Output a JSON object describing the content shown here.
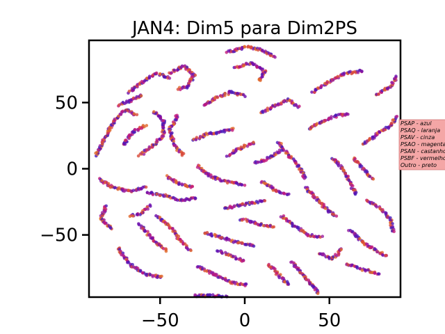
{
  "chart_data": {
    "type": "scatter",
    "title": "JAN4: Dim5 para Dim2PS",
    "xlabel": "",
    "ylabel": "",
    "xlim": [
      -92,
      92
    ],
    "ylim": [
      -97,
      97
    ],
    "xticks": [
      -50,
      0,
      50
    ],
    "yticks": [
      -50,
      0,
      50
    ],
    "xtick_labels": [
      "−50",
      "0",
      "50"
    ],
    "ytick_labels": [
      "−50",
      "0",
      "50"
    ],
    "grid": false,
    "legend_placement": "right, outside plot",
    "legend": [
      "PSAP - azul",
      "PSAQ - laranja",
      "PSAV - cinza",
      "PSAO - magenta",
      "PSAN - castanho",
      "PSBF - vermelho",
      "Outro - preto"
    ],
    "legend_bg": "#f4a6a6",
    "point_colors": [
      "#6a0dad",
      "#c0187a",
      "#d84a3a",
      "#4a1ab8",
      "#e0662a",
      "#9b1fa0"
    ],
    "clusters": [
      [
        [
          -88,
          10
        ],
        [
          -82,
          25
        ],
        [
          -76,
          38
        ],
        [
          -70,
          45
        ],
        [
          -64,
          40
        ]
      ],
      [
        [
          -86,
          -8
        ],
        [
          -78,
          -14
        ],
        [
          -68,
          -17
        ],
        [
          -58,
          -14
        ]
      ],
      [
        [
          -82,
          -28
        ],
        [
          -85,
          -38
        ],
        [
          -78,
          -46
        ]
      ],
      [
        [
          -72,
          18
        ],
        [
          -66,
          28
        ],
        [
          -58,
          33
        ]
      ],
      [
        [
          -62,
          10
        ],
        [
          -54,
          18
        ],
        [
          -48,
          25
        ],
        [
          -48,
          36
        ],
        [
          -54,
          44
        ]
      ],
      [
        [
          -68,
          58
        ],
        [
          -60,
          66
        ],
        [
          -52,
          72
        ],
        [
          -44,
          68
        ]
      ],
      [
        [
          -58,
          -18
        ],
        [
          -48,
          -20
        ],
        [
          -38,
          -24
        ],
        [
          -28,
          -22
        ]
      ],
      [
        [
          -75,
          -60
        ],
        [
          -68,
          -72
        ],
        [
          -58,
          -80
        ],
        [
          -48,
          -82
        ]
      ],
      [
        [
          -62,
          -42
        ],
        [
          -54,
          -54
        ],
        [
          -46,
          -62
        ]
      ],
      [
        [
          -52,
          -36
        ],
        [
          -44,
          -44
        ],
        [
          -38,
          -54
        ],
        [
          -32,
          -62
        ]
      ],
      [
        [
          -44,
          72
        ],
        [
          -36,
          78
        ],
        [
          -30,
          70
        ],
        [
          -34,
          62
        ],
        [
          -40,
          60
        ]
      ],
      [
        [
          -40,
          40
        ],
        [
          -44,
          30
        ],
        [
          -42,
          18
        ],
        [
          -36,
          10
        ]
      ],
      [
        [
          -28,
          2
        ],
        [
          -20,
          -6
        ],
        [
          -10,
          -10
        ],
        [
          0,
          -12
        ]
      ],
      [
        [
          -30,
          22
        ],
        [
          -22,
          26
        ],
        [
          -14,
          28
        ],
        [
          -6,
          30
        ]
      ],
      [
        [
          -24,
          48
        ],
        [
          -16,
          54
        ],
        [
          -8,
          58
        ],
        [
          0,
          55
        ]
      ],
      [
        [
          -24,
          -48
        ],
        [
          -14,
          -52
        ],
        [
          -4,
          -56
        ],
        [
          6,
          -58
        ]
      ],
      [
        [
          -12,
          -30
        ],
        [
          -4,
          -28
        ],
        [
          4,
          -26
        ],
        [
          12,
          -24
        ]
      ],
      [
        [
          -28,
          -74
        ],
        [
          -18,
          -80
        ],
        [
          -8,
          -86
        ],
        [
          2,
          -88
        ]
      ],
      [
        [
          -30,
          -96
        ],
        [
          -18,
          -96
        ],
        [
          -6,
          -98
        ],
        [
          6,
          -100
        ]
      ],
      [
        [
          -10,
          88
        ],
        [
          0,
          92
        ],
        [
          10,
          90
        ],
        [
          18,
          84
        ]
      ],
      [
        [
          -6,
          76
        ],
        [
          4,
          80
        ],
        [
          12,
          74
        ],
        [
          8,
          66
        ]
      ],
      [
        [
          10,
          42
        ],
        [
          18,
          48
        ],
        [
          26,
          52
        ],
        [
          32,
          46
        ]
      ],
      [
        [
          20,
          20
        ],
        [
          26,
          10
        ],
        [
          32,
          2
        ],
        [
          36,
          -8
        ]
      ],
      [
        [
          6,
          4
        ],
        [
          14,
          8
        ],
        [
          22,
          14
        ]
      ],
      [
        [
          -10,
          10
        ],
        [
          -2,
          16
        ],
        [
          6,
          20
        ]
      ],
      [
        [
          22,
          -36
        ],
        [
          30,
          -44
        ],
        [
          38,
          -50
        ],
        [
          46,
          -52
        ]
      ],
      [
        [
          28,
          -70
        ],
        [
          34,
          -80
        ],
        [
          40,
          -88
        ],
        [
          44,
          -94
        ]
      ],
      [
        [
          14,
          -72
        ],
        [
          20,
          -80
        ],
        [
          26,
          -88
        ]
      ],
      [
        [
          38,
          30
        ],
        [
          46,
          36
        ],
        [
          54,
          40
        ],
        [
          62,
          42
        ]
      ],
      [
        [
          40,
          58
        ],
        [
          50,
          66
        ],
        [
          60,
          72
        ],
        [
          70,
          74
        ]
      ],
      [
        [
          36,
          -14
        ],
        [
          42,
          -22
        ],
        [
          48,
          -30
        ],
        [
          54,
          -36
        ]
      ],
      [
        [
          52,
          8
        ],
        [
          58,
          0
        ],
        [
          62,
          -10
        ],
        [
          66,
          -20
        ]
      ],
      [
        [
          62,
          -46
        ],
        [
          70,
          -56
        ],
        [
          78,
          -62
        ],
        [
          84,
          -66
        ]
      ],
      [
        [
          70,
          18
        ],
        [
          78,
          26
        ],
        [
          86,
          32
        ],
        [
          90,
          40
        ]
      ],
      [
        [
          72,
          -24
        ],
        [
          80,
          -30
        ],
        [
          86,
          -38
        ],
        [
          88,
          -48
        ]
      ],
      [
        [
          60,
          -72
        ],
        [
          70,
          -76
        ],
        [
          80,
          -80
        ]
      ],
      [
        [
          78,
          56
        ],
        [
          86,
          62
        ],
        [
          90,
          70
        ]
      ],
      [
        [
          -56,
          -28
        ],
        [
          -62,
          -34
        ],
        [
          -68,
          -36
        ]
      ],
      [
        [
          10,
          -10
        ],
        [
          18,
          -16
        ],
        [
          26,
          -20
        ]
      ],
      [
        [
          -2,
          -38
        ],
        [
          8,
          -42
        ],
        [
          18,
          -44
        ]
      ],
      [
        [
          44,
          -64
        ],
        [
          52,
          -68
        ],
        [
          58,
          -60
        ]
      ],
      [
        [
          -74,
          48
        ],
        [
          -66,
          52
        ],
        [
          -60,
          56
        ]
      ],
      [
        [
          64,
          8
        ],
        [
          70,
          0
        ],
        [
          76,
          -8
        ]
      ],
      [
        [
          -16,
          -62
        ],
        [
          -8,
          -66
        ],
        [
          0,
          -70
        ]
      ],
      [
        [
          -46,
          -6
        ],
        [
          -38,
          -12
        ],
        [
          -30,
          -14
        ]
      ]
    ]
  }
}
